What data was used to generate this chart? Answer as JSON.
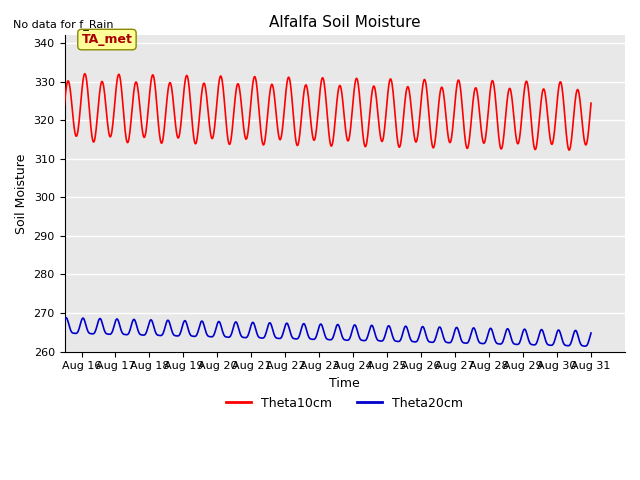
{
  "title": "Alfalfa Soil Moisture",
  "subtitle": "No data for f_Rain",
  "xlabel": "Time",
  "ylabel": "Soil Moisture",
  "ylim": [
    260,
    342
  ],
  "yticks": [
    260,
    270,
    280,
    290,
    300,
    310,
    320,
    330,
    340
  ],
  "x_labels": [
    "Aug 16",
    "Aug 17",
    "Aug 18",
    "Aug 19",
    "Aug 20",
    "Aug 21",
    "Aug 22",
    "Aug 23",
    "Aug 24",
    "Aug 25",
    "Aug 26",
    "Aug 27",
    "Aug 28",
    "Aug 29",
    "Aug 30",
    "Aug 31"
  ],
  "ta_met_label": "TA_met",
  "ta_met_box_color": "#ffff99",
  "ta_met_text_color": "#aa0000",
  "legend_labels": [
    "Theta10cm",
    "Theta20cm"
  ],
  "legend_colors": [
    "#ff0000",
    "#0000cc"
  ],
  "line1_color": "#ff0000",
  "line2_color": "#0000cc",
  "bg_color": "#e8e8e8",
  "grid_color": "#ffffff",
  "n_days": 21,
  "theta10_base": 324,
  "theta10_amp": 5.5,
  "theta10_period": 1.0,
  "theta20_base": 266,
  "theta20_amp": 1.8,
  "theta20_period": 1.0
}
